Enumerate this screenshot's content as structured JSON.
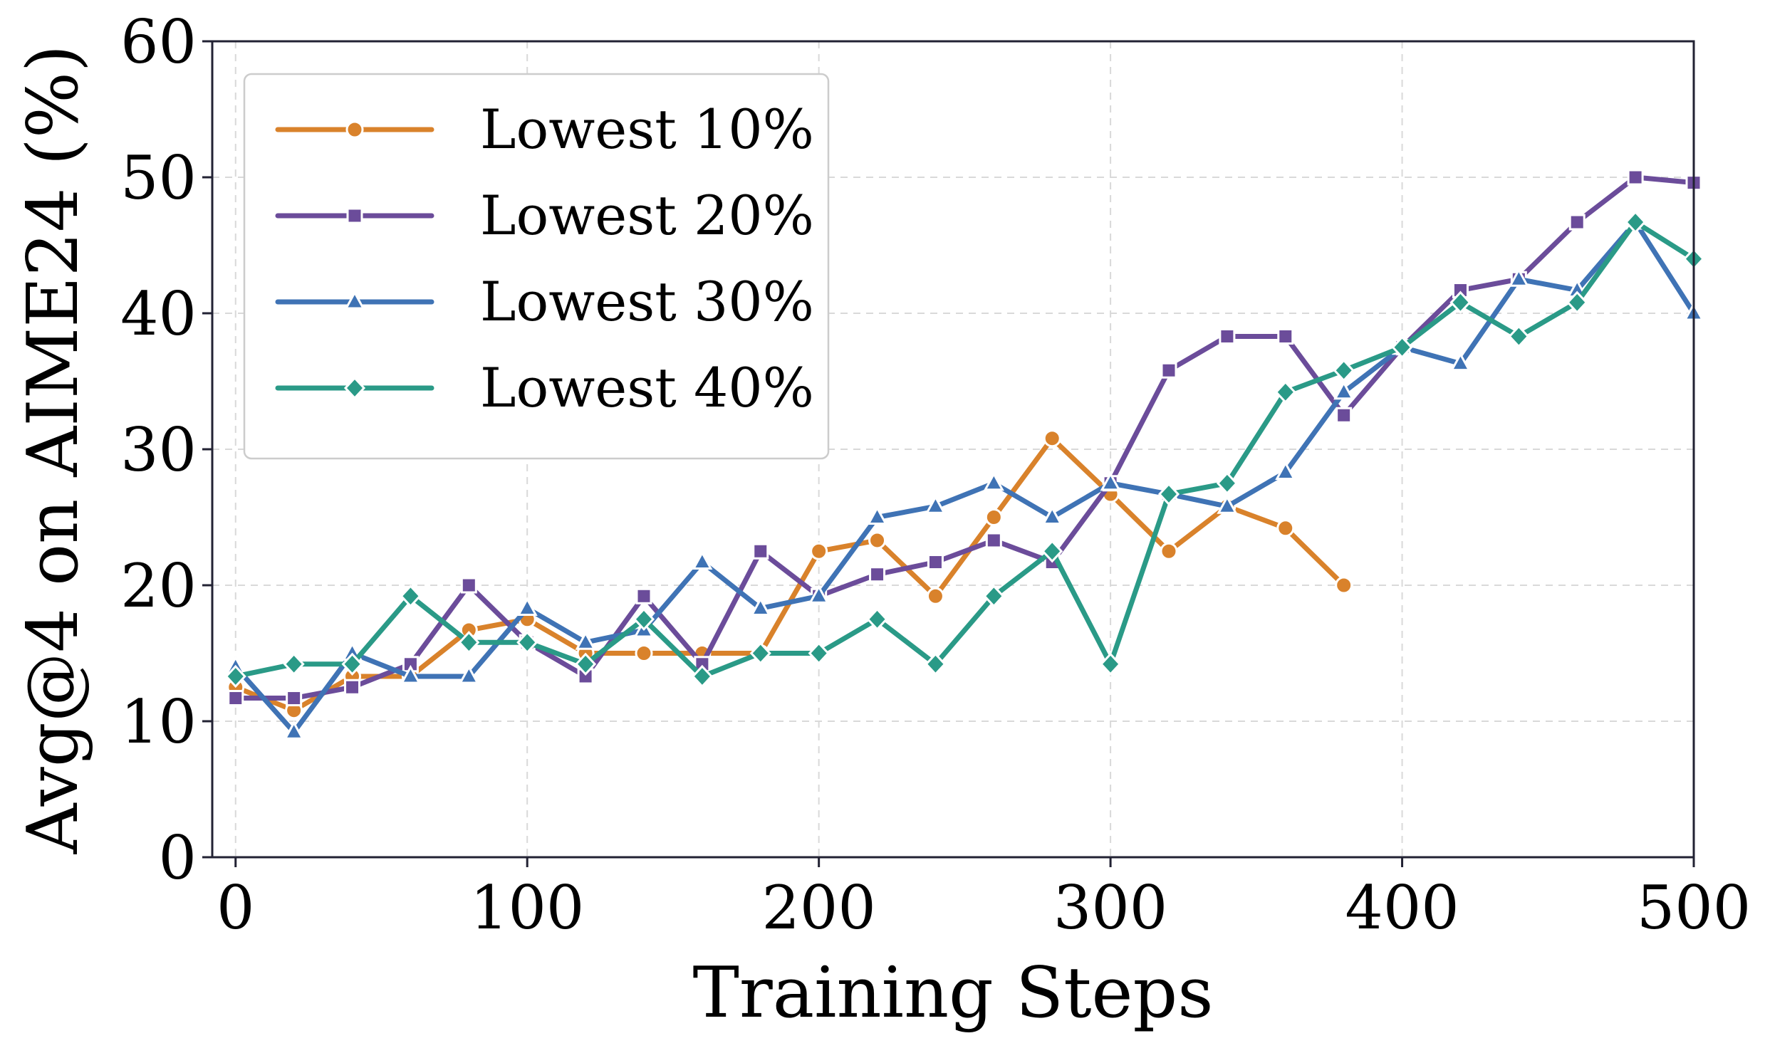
{
  "chart_data": {
    "type": "line",
    "title": "",
    "xlabel": "Training Steps",
    "ylabel": "Avg@4 on AIME24 (%)",
    "xlim": [
      -8,
      500
    ],
    "ylim": [
      0,
      60
    ],
    "xticks": [
      0,
      100,
      200,
      300,
      400,
      500
    ],
    "yticks": [
      0,
      10,
      20,
      30,
      40,
      50,
      60
    ],
    "xtick_labels": [
      "0",
      "100",
      "200",
      "300",
      "400",
      "500"
    ],
    "ytick_labels": [
      "0",
      "10",
      "20",
      "30",
      "40",
      "50",
      "60"
    ],
    "grid": true,
    "legend_position": "top-left",
    "series": [
      {
        "name": "Lowest 10%",
        "color": "#d9822b",
        "marker": "circle",
        "x": [
          0,
          20,
          40,
          60,
          80,
          100,
          120,
          140,
          160,
          180,
          200,
          220,
          240,
          260,
          280,
          300,
          320,
          340,
          360,
          380
        ],
        "y": [
          12.5,
          10.8,
          13.3,
          13.3,
          16.7,
          17.5,
          15.0,
          15.0,
          15.0,
          15.0,
          22.5,
          23.3,
          19.2,
          25.0,
          30.8,
          26.7,
          22.5,
          25.8,
          24.2,
          20.0
        ]
      },
      {
        "name": "Lowest 20%",
        "color": "#6b4c9a",
        "marker": "square",
        "x": [
          0,
          20,
          40,
          60,
          80,
          100,
          120,
          140,
          160,
          180,
          200,
          220,
          240,
          260,
          280,
          300,
          320,
          340,
          360,
          380,
          400,
          420,
          440,
          460,
          480,
          500
        ],
        "y": [
          11.7,
          11.7,
          12.5,
          14.2,
          20.0,
          15.8,
          13.3,
          19.2,
          14.2,
          22.5,
          19.2,
          20.8,
          21.7,
          23.3,
          21.7,
          27.5,
          35.8,
          38.3,
          38.3,
          32.5,
          37.5,
          41.7,
          42.5,
          46.7,
          50.0,
          49.6
        ]
      },
      {
        "name": "Lowest 30%",
        "color": "#3f73b5",
        "marker": "triangle",
        "x": [
          0,
          20,
          40,
          60,
          80,
          100,
          120,
          140,
          160,
          180,
          200,
          220,
          240,
          260,
          280,
          300,
          320,
          340,
          360,
          380,
          400,
          420,
          440,
          460,
          480,
          500
        ],
        "y": [
          14.0,
          9.2,
          15.0,
          13.3,
          13.3,
          18.3,
          15.8,
          16.7,
          21.7,
          18.3,
          19.2,
          25.0,
          25.8,
          27.5,
          25.0,
          27.5,
          26.7,
          25.8,
          28.3,
          34.2,
          37.5,
          36.3,
          42.5,
          41.7,
          46.7,
          40.0
        ]
      },
      {
        "name": "Lowest 40%",
        "color": "#2a9a87",
        "marker": "diamond",
        "x": [
          0,
          20,
          40,
          60,
          80,
          100,
          120,
          140,
          160,
          180,
          200,
          220,
          240,
          260,
          280,
          300,
          320,
          340,
          360,
          380,
          400,
          420,
          440,
          460,
          480,
          500
        ],
        "y": [
          13.3,
          14.2,
          14.2,
          19.2,
          15.8,
          15.8,
          14.2,
          17.5,
          13.3,
          15.0,
          15.0,
          17.5,
          14.2,
          19.2,
          22.5,
          14.2,
          26.7,
          27.5,
          34.2,
          35.8,
          37.5,
          40.8,
          38.3,
          40.8,
          46.7,
          44.0
        ]
      }
    ]
  }
}
